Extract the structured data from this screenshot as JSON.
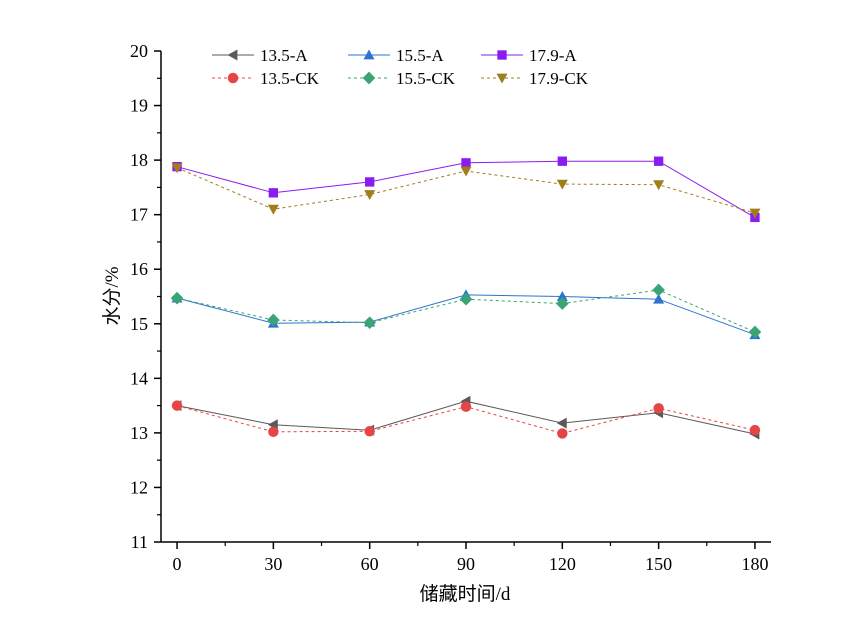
{
  "chart_data": {
    "type": "line",
    "xlabel": "储藏时间/d",
    "ylabel": "水分/%",
    "x": [
      0,
      30,
      60,
      90,
      120,
      150,
      180
    ],
    "xlim": [
      -5,
      185
    ],
    "ylim": [
      11,
      20
    ],
    "xticks": [
      0,
      30,
      60,
      90,
      120,
      150,
      180
    ],
    "yticks": [
      11,
      12,
      13,
      14,
      15,
      16,
      17,
      18,
      19,
      20
    ],
    "grid": false,
    "legend_position": "top",
    "series": [
      {
        "name": "13.5-A",
        "values": [
          13.5,
          13.15,
          13.05,
          13.58,
          13.18,
          13.37,
          12.98
        ],
        "color": "#595959",
        "marker": "triangle-left",
        "dashed": false
      },
      {
        "name": "15.5-A",
        "values": [
          15.47,
          15.01,
          15.03,
          15.53,
          15.5,
          15.45,
          14.8
        ],
        "color": "#2f73d2",
        "marker": "triangle-up",
        "dashed": false
      },
      {
        "name": "17.9-A",
        "values": [
          17.88,
          17.4,
          17.6,
          17.95,
          17.98,
          17.98,
          16.95
        ],
        "color": "#8b1cf0",
        "marker": "square",
        "dashed": false
      },
      {
        "name": "13.5-CK",
        "values": [
          13.5,
          13.02,
          13.03,
          13.48,
          12.99,
          13.45,
          13.05
        ],
        "color": "#e64545",
        "marker": "circle",
        "dashed": true
      },
      {
        "name": "15.5-CK",
        "values": [
          15.47,
          15.07,
          15.02,
          15.45,
          15.37,
          15.62,
          14.85
        ],
        "color": "#3aa474",
        "marker": "diamond",
        "dashed": true
      },
      {
        "name": "17.9-CK",
        "values": [
          17.86,
          17.1,
          17.37,
          17.8,
          17.56,
          17.55,
          17.03
        ],
        "color": "#a07e1c",
        "marker": "triangle-down",
        "dashed": true
      }
    ]
  }
}
